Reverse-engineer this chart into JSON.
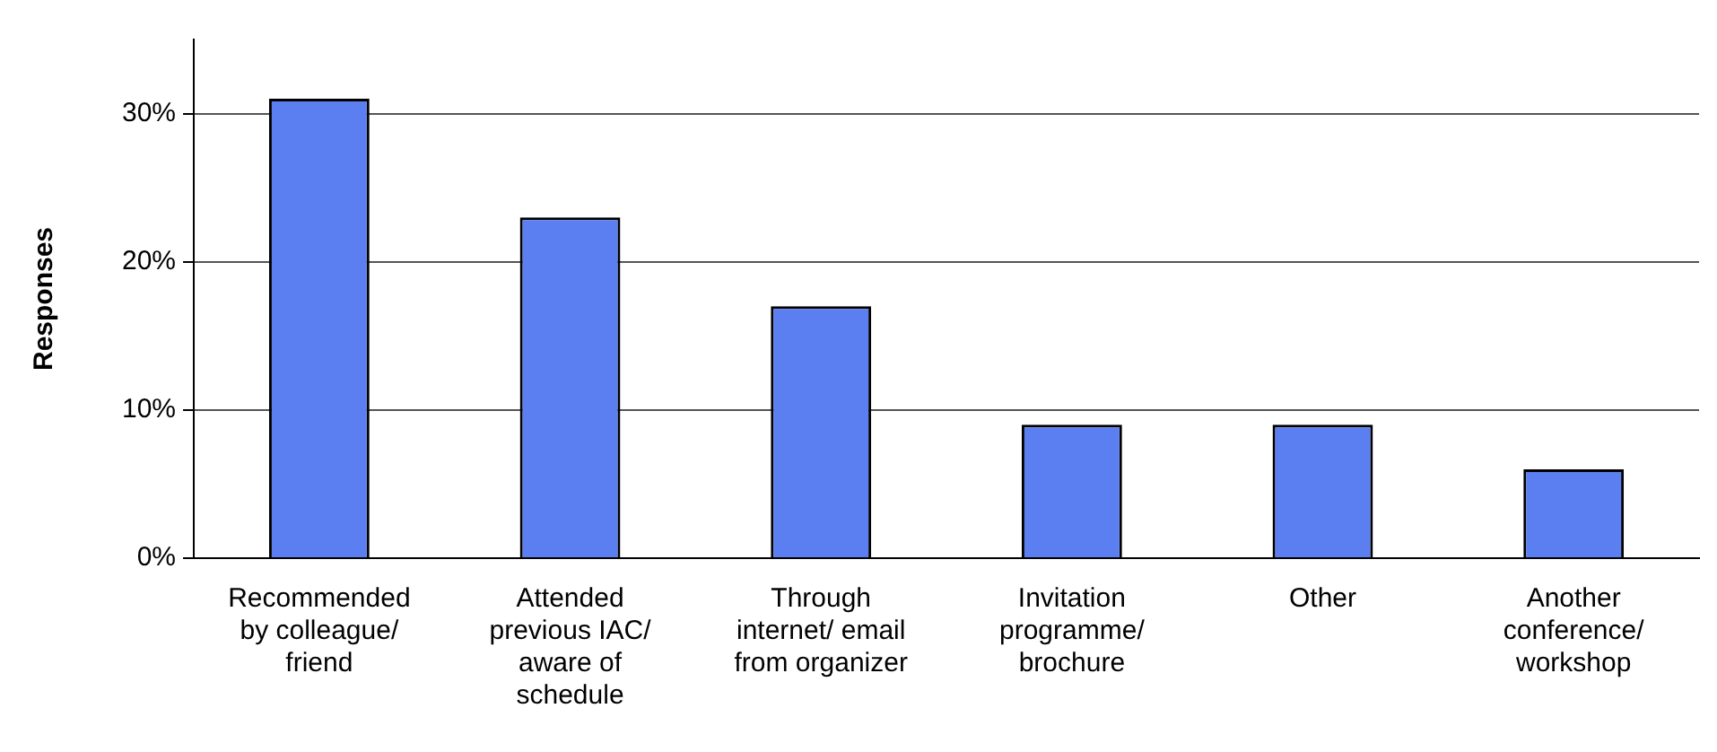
{
  "chart_data": {
    "type": "bar",
    "ylabel": "Responses",
    "categories": [
      "Recommended by colleague/ friend",
      "Attended previous IAC/ aware of schedule",
      "Through internet/ email from organizer",
      "Invitation programme/ brochure",
      "Other",
      "Another conference/ workshop"
    ],
    "values": [
      31,
      23,
      17,
      9,
      9,
      6
    ],
    "color": "#5b7ff0",
    "ylim": [
      0,
      35
    ],
    "yticks": [
      {
        "value": 0,
        "label": "0%"
      },
      {
        "value": 10,
        "label": "10%"
      },
      {
        "value": 20,
        "label": "20%"
      },
      {
        "value": 30,
        "label": "30%"
      }
    ],
    "grid": "y",
    "legend": false
  }
}
